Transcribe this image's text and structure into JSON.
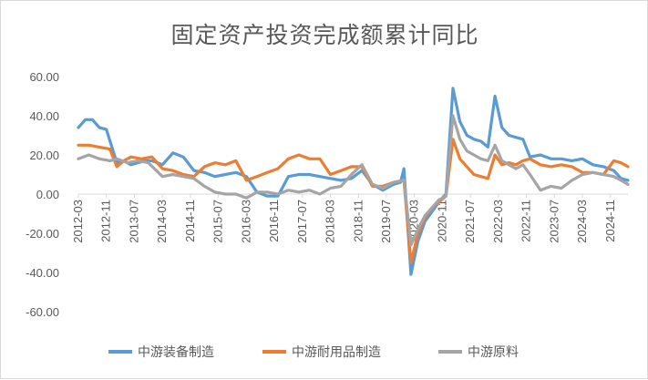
{
  "chart_data": {
    "type": "line",
    "title": "固定资产投资完成额累计同比",
    "ylim": [
      -60,
      60
    ],
    "yticks": [
      60,
      40,
      20,
      0,
      -20,
      -40,
      -60
    ],
    "ytick_labels": [
      "60.00",
      "40.00",
      "20.00",
      "0.00",
      "-20.00",
      "-40.00",
      "-60.00"
    ],
    "grid": false,
    "legend_position": "bottom",
    "x_range": [
      "2012-03",
      "2025-04"
    ],
    "xtick_labels": [
      "2012-03",
      "2012-11",
      "2013-07",
      "2014-03",
      "2014-11",
      "2015-07",
      "2016-03",
      "2016-11",
      "2017-07",
      "2018-03",
      "2018-11",
      "2019-07",
      "2020-03",
      "2020-11",
      "2021-07",
      "2022-03",
      "2022-11",
      "2023-07",
      "2024-03",
      "2024-11"
    ],
    "series": [
      {
        "name": "中游装备制造",
        "color": "#5b9bd5",
        "points": [
          [
            "2012-03",
            34
          ],
          [
            "2012-05",
            38
          ],
          [
            "2012-07",
            38
          ],
          [
            "2012-09",
            34
          ],
          [
            "2012-11",
            33
          ],
          [
            "2013-02",
            16
          ],
          [
            "2013-04",
            17
          ],
          [
            "2013-06",
            15
          ],
          [
            "2013-08",
            16
          ],
          [
            "2013-10",
            17
          ],
          [
            "2013-12",
            17
          ],
          [
            "2014-03",
            15
          ],
          [
            "2014-06",
            21
          ],
          [
            "2014-09",
            19
          ],
          [
            "2014-12",
            12
          ],
          [
            "2015-03",
            11
          ],
          [
            "2015-06",
            9
          ],
          [
            "2015-09",
            10
          ],
          [
            "2015-12",
            11
          ],
          [
            "2016-03",
            9
          ],
          [
            "2016-06",
            1
          ],
          [
            "2016-09",
            -1
          ],
          [
            "2016-12",
            -1
          ],
          [
            "2017-03",
            9
          ],
          [
            "2017-06",
            10
          ],
          [
            "2017-09",
            10
          ],
          [
            "2017-12",
            9
          ],
          [
            "2018-03",
            8
          ],
          [
            "2018-06",
            7
          ],
          [
            "2018-09",
            8
          ],
          [
            "2018-12",
            12
          ],
          [
            "2019-03",
            5
          ],
          [
            "2019-06",
            2
          ],
          [
            "2019-09",
            5
          ],
          [
            "2019-11",
            6
          ],
          [
            "2019-12",
            13
          ],
          [
            "2020-02",
            -41
          ],
          [
            "2020-04",
            -24
          ],
          [
            "2020-06",
            -14
          ],
          [
            "2020-08",
            -9
          ],
          [
            "2020-10",
            -4
          ],
          [
            "2020-12",
            0
          ],
          [
            "2021-02",
            54
          ],
          [
            "2021-04",
            37
          ],
          [
            "2021-06",
            30
          ],
          [
            "2021-08",
            28
          ],
          [
            "2021-10",
            27
          ],
          [
            "2021-12",
            24
          ],
          [
            "2022-02",
            50
          ],
          [
            "2022-04",
            34
          ],
          [
            "2022-06",
            30
          ],
          [
            "2022-08",
            29
          ],
          [
            "2022-10",
            28
          ],
          [
            "2022-12",
            19
          ],
          [
            "2023-03",
            20
          ],
          [
            "2023-06",
            18
          ],
          [
            "2023-09",
            18
          ],
          [
            "2023-12",
            17
          ],
          [
            "2024-03",
            18
          ],
          [
            "2024-06",
            15
          ],
          [
            "2024-09",
            14
          ],
          [
            "2024-12",
            12
          ],
          [
            "2025-02",
            8
          ],
          [
            "2025-04",
            7
          ]
        ]
      },
      {
        "name": "中游耐用品制造",
        "color": "#ed7d31",
        "points": [
          [
            "2012-03",
            25
          ],
          [
            "2012-06",
            25
          ],
          [
            "2012-09",
            24
          ],
          [
            "2012-12",
            23
          ],
          [
            "2013-02",
            14
          ],
          [
            "2013-04",
            17
          ],
          [
            "2013-06",
            19
          ],
          [
            "2013-09",
            18
          ],
          [
            "2013-12",
            19
          ],
          [
            "2014-03",
            13
          ],
          [
            "2014-06",
            12
          ],
          [
            "2014-09",
            10
          ],
          [
            "2014-12",
            9
          ],
          [
            "2015-03",
            14
          ],
          [
            "2015-06",
            16
          ],
          [
            "2015-09",
            15
          ],
          [
            "2015-12",
            17
          ],
          [
            "2016-03",
            7
          ],
          [
            "2016-06",
            9
          ],
          [
            "2016-09",
            11
          ],
          [
            "2016-12",
            13
          ],
          [
            "2017-03",
            18
          ],
          [
            "2017-06",
            20
          ],
          [
            "2017-09",
            18
          ],
          [
            "2017-12",
            18
          ],
          [
            "2018-03",
            10
          ],
          [
            "2018-06",
            12
          ],
          [
            "2018-09",
            14
          ],
          [
            "2018-12",
            14
          ],
          [
            "2019-03",
            4
          ],
          [
            "2019-06",
            4
          ],
          [
            "2019-09",
            6
          ],
          [
            "2019-12",
            7
          ],
          [
            "2020-02",
            -35
          ],
          [
            "2020-04",
            -20
          ],
          [
            "2020-06",
            -12
          ],
          [
            "2020-08",
            -7
          ],
          [
            "2020-10",
            -4
          ],
          [
            "2020-12",
            -1
          ],
          [
            "2021-02",
            28
          ],
          [
            "2021-04",
            18
          ],
          [
            "2021-06",
            14
          ],
          [
            "2021-08",
            10
          ],
          [
            "2021-10",
            9
          ],
          [
            "2021-12",
            8
          ],
          [
            "2022-02",
            20
          ],
          [
            "2022-04",
            15
          ],
          [
            "2022-06",
            16
          ],
          [
            "2022-08",
            15
          ],
          [
            "2022-10",
            17
          ],
          [
            "2022-12",
            18
          ],
          [
            "2023-03",
            15
          ],
          [
            "2023-06",
            14
          ],
          [
            "2023-09",
            15
          ],
          [
            "2023-12",
            14
          ],
          [
            "2024-03",
            11
          ],
          [
            "2024-06",
            11
          ],
          [
            "2024-09",
            10
          ],
          [
            "2024-12",
            17
          ],
          [
            "2025-02",
            16
          ],
          [
            "2025-04",
            14
          ]
        ]
      },
      {
        "name": "中游原料",
        "color": "#a5a5a5",
        "points": [
          [
            "2012-03",
            18
          ],
          [
            "2012-06",
            20
          ],
          [
            "2012-09",
            18
          ],
          [
            "2012-12",
            17
          ],
          [
            "2013-02",
            18
          ],
          [
            "2013-05",
            16
          ],
          [
            "2013-08",
            17
          ],
          [
            "2013-11",
            16
          ],
          [
            "2014-03",
            9
          ],
          [
            "2014-06",
            10
          ],
          [
            "2014-09",
            9
          ],
          [
            "2014-12",
            8
          ],
          [
            "2015-03",
            4
          ],
          [
            "2015-06",
            1
          ],
          [
            "2015-09",
            0
          ],
          [
            "2015-12",
            0
          ],
          [
            "2016-03",
            -2
          ],
          [
            "2016-06",
            1
          ],
          [
            "2016-09",
            1
          ],
          [
            "2016-12",
            0
          ],
          [
            "2017-03",
            2
          ],
          [
            "2017-06",
            1
          ],
          [
            "2017-09",
            2
          ],
          [
            "2017-12",
            0
          ],
          [
            "2018-03",
            3
          ],
          [
            "2018-06",
            4
          ],
          [
            "2018-09",
            10
          ],
          [
            "2018-12",
            15
          ],
          [
            "2019-03",
            5
          ],
          [
            "2019-06",
            3
          ],
          [
            "2019-09",
            6
          ],
          [
            "2019-12",
            7
          ],
          [
            "2020-02",
            -26
          ],
          [
            "2020-04",
            -18
          ],
          [
            "2020-06",
            -11
          ],
          [
            "2020-08",
            -7
          ],
          [
            "2020-10",
            -3
          ],
          [
            "2020-12",
            -1
          ],
          [
            "2021-02",
            40
          ],
          [
            "2021-04",
            28
          ],
          [
            "2021-06",
            22
          ],
          [
            "2021-08",
            20
          ],
          [
            "2021-10",
            18
          ],
          [
            "2021-12",
            17
          ],
          [
            "2022-02",
            25
          ],
          [
            "2022-04",
            17
          ],
          [
            "2022-06",
            15
          ],
          [
            "2022-08",
            13
          ],
          [
            "2022-10",
            15
          ],
          [
            "2022-12",
            10
          ],
          [
            "2023-03",
            2
          ],
          [
            "2023-06",
            4
          ],
          [
            "2023-09",
            3
          ],
          [
            "2023-12",
            7
          ],
          [
            "2024-03",
            10
          ],
          [
            "2024-06",
            11
          ],
          [
            "2024-09",
            10
          ],
          [
            "2024-12",
            9
          ],
          [
            "2025-02",
            7
          ],
          [
            "2025-04",
            5
          ]
        ]
      }
    ]
  }
}
